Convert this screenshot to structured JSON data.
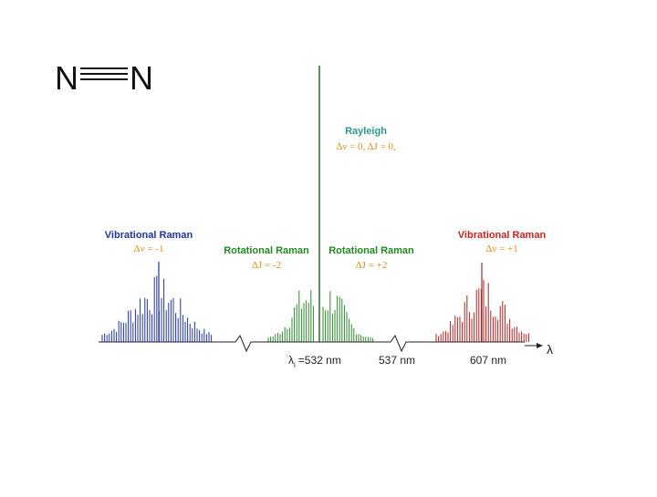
{
  "molecule": {
    "left": "N",
    "right": "N"
  },
  "labels": {
    "rayleigh": {
      "title": "Rayleigh",
      "subtitle": "Δν = 0, ΔJ = 0,"
    },
    "vib_left": {
      "title": "Vibrational Raman",
      "subtitle": "Δν = -1"
    },
    "rot_left": {
      "title": "Rotational Raman",
      "subtitle": "ΔJ = -2"
    },
    "rot_right": {
      "title": "Rotational Raman",
      "subtitle": "ΔJ = +2"
    },
    "vib_right": {
      "title": "Vibrational Raman",
      "subtitle": "Δν = +1"
    }
  },
  "axis": {
    "label": "λ",
    "ticks": [
      {
        "symbol": "λ",
        "subscript": "i",
        "text": "=532 nm"
      },
      "537 nm",
      "607 nm"
    ]
  }
}
